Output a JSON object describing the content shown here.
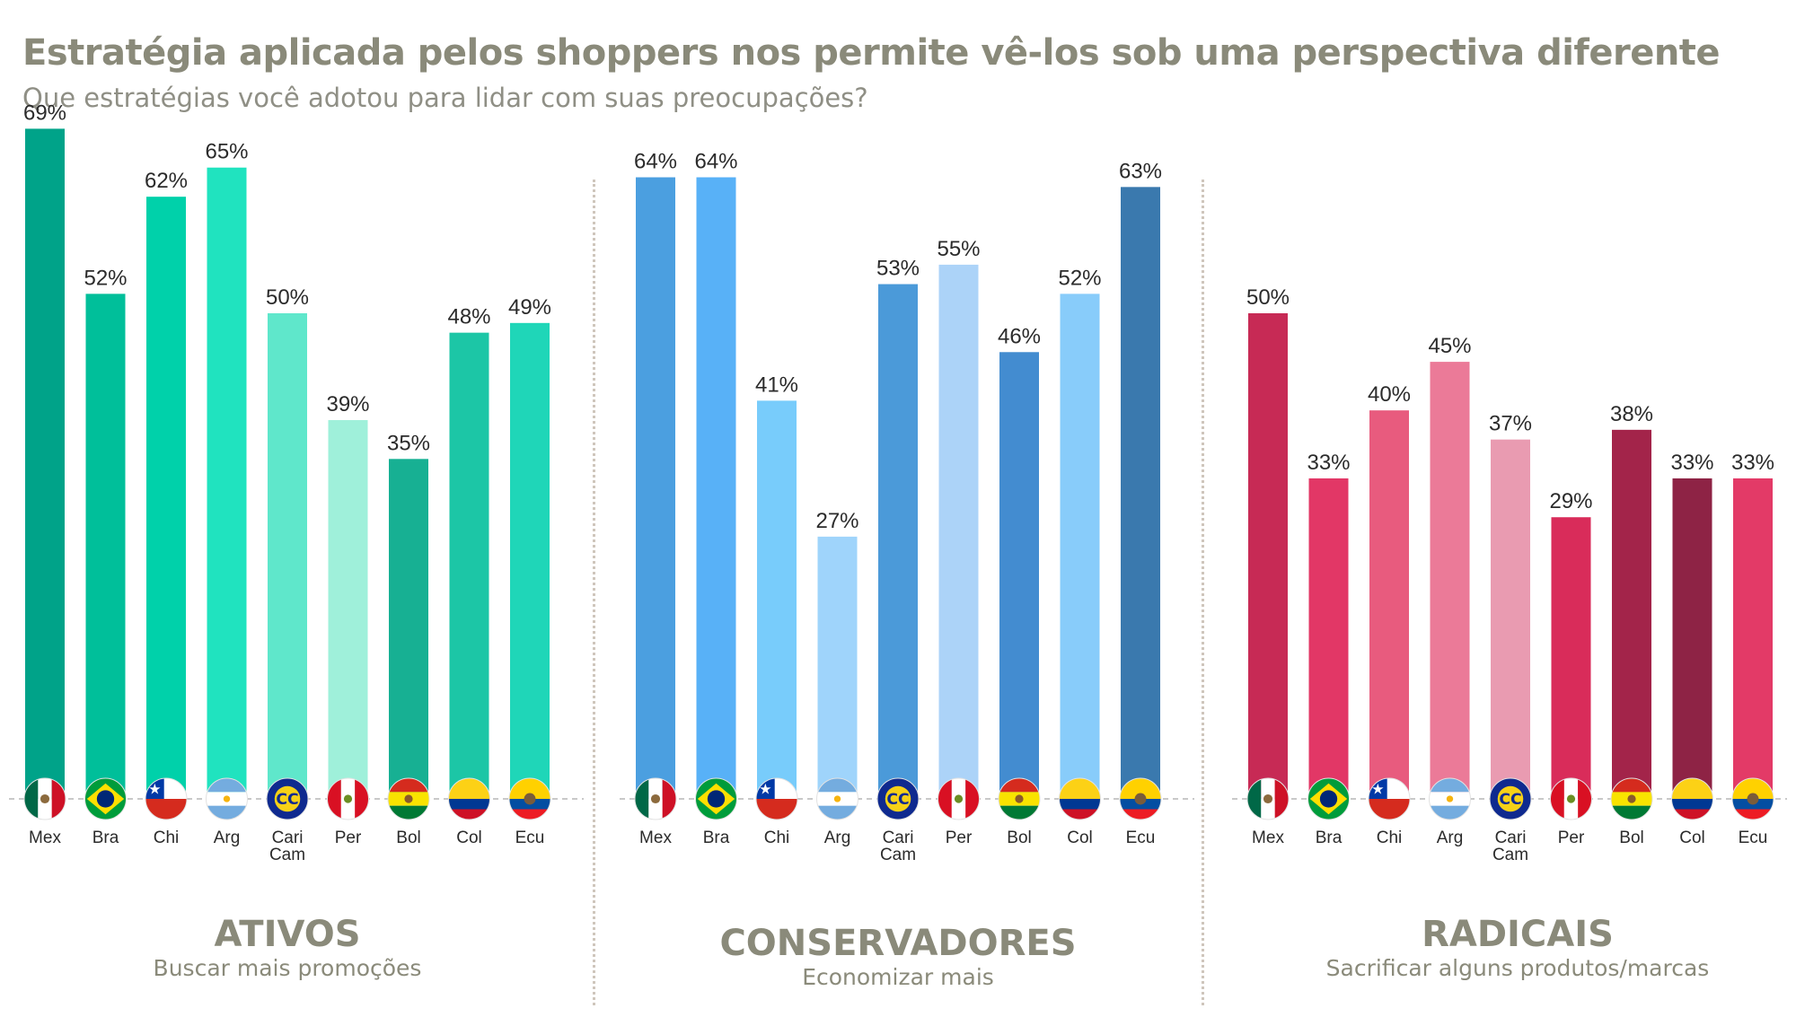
{
  "header": {
    "title": "Estratégia aplicada pelos shoppers nos permite vê-los sob uma perspectiva diferente",
    "subtitle": "Que estratégias você adotou para lidar com suas preocupações?"
  },
  "flags": {
    "Mex": "mexico-flag-icon",
    "Bra": "brazil-flag-icon",
    "Chi": "chile-flag-icon",
    "Arg": "argentina-flag-icon",
    "Cari Cam": "caricom-flag-icon",
    "Per": "peru-flag-icon",
    "Bol": "bolivia-flag-icon",
    "Col": "colombia-flag-icon",
    "Ecu": "ecuador-flag-icon"
  },
  "chart_data": [
    {
      "type": "bar",
      "title": "ATIVOS",
      "subtitle": "Buscar mais promoções",
      "categories": [
        "Mex",
        "Bra",
        "Chi",
        "Arg",
        "Cari Cam",
        "Per",
        "Bol",
        "Col",
        "Ecu"
      ],
      "values": [
        69,
        52,
        62,
        65,
        50,
        39,
        35,
        48,
        49
      ],
      "labels": [
        "69%",
        "52%",
        "62%",
        "65%",
        "50%",
        "39%",
        "35%",
        "48%",
        "49%"
      ],
      "colors": [
        "#00a389",
        "#00bf9a",
        "#00d1aa",
        "#20e3bf",
        "#5fe7cb",
        "#9ff0da",
        "#17b093",
        "#1cc6a6",
        "#1fd6b8"
      ],
      "ylim": [
        0,
        75
      ],
      "grid": false
    },
    {
      "type": "bar",
      "title": "CONSERVADORES",
      "subtitle": "Economizar mais",
      "categories": [
        "Mex",
        "Bra",
        "Chi",
        "Arg",
        "Cari Cam",
        "Per",
        "Bol",
        "Col",
        "Ecu"
      ],
      "values": [
        64,
        64,
        41,
        27,
        53,
        55,
        46,
        52,
        63
      ],
      "labels": [
        "64%",
        "64%",
        "41%",
        "27%",
        "53%",
        "55%",
        "46%",
        "52%",
        "63%"
      ],
      "colors": [
        "#4b9fe0",
        "#58b1f7",
        "#78ccfb",
        "#9fd4fb",
        "#4b9ad9",
        "#acd3f8",
        "#438cd0",
        "#88ccfa",
        "#3a79ae"
      ],
      "ylim": [
        0,
        75
      ],
      "grid": false
    },
    {
      "type": "bar",
      "title": "RADICAIS",
      "subtitle": "Sacrificar alguns produtos/marcas",
      "categories": [
        "Mex",
        "Bra",
        "Chi",
        "Arg",
        "Cari Cam",
        "Per",
        "Bol",
        "Col",
        "Ecu"
      ],
      "values": [
        50,
        33,
        40,
        45,
        37,
        29,
        38,
        33,
        33
      ],
      "labels": [
        "50%",
        "33%",
        "40%",
        "45%",
        "37%",
        "29%",
        "38%",
        "33%",
        "33%"
      ],
      "colors": [
        "#c72a55",
        "#e23766",
        "#e85b7e",
        "#eb7a98",
        "#e99bb1",
        "#d92c5a",
        "#a3244a",
        "#8e2345",
        "#e33a67"
      ],
      "ylim": [
        0,
        75
      ],
      "grid": false
    }
  ]
}
